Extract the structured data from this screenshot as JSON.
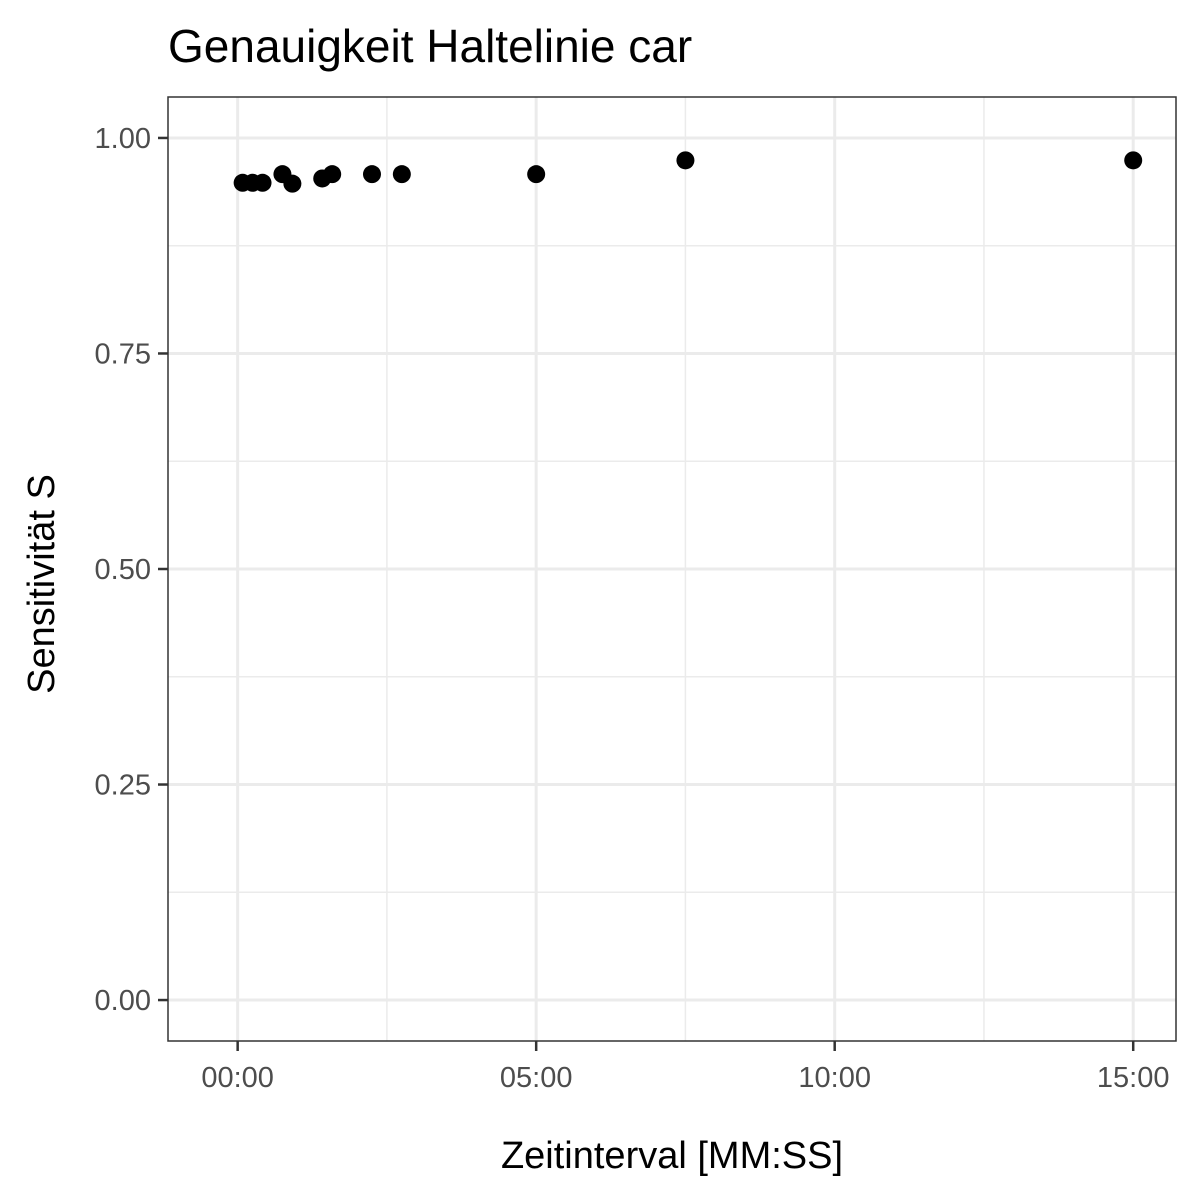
{
  "chart_data": {
    "type": "scatter",
    "title": "Genauigkeit Haltelinie car",
    "xlabel": "Zeitinterval [MM:SS]",
    "ylabel": "Sensitivität S",
    "x_unit": "seconds",
    "xlim": [
      -70,
      943
    ],
    "ylim": [
      -0.0475,
      1.0475
    ],
    "x_ticks": [
      {
        "value": 0,
        "label": "00:00"
      },
      {
        "value": 300,
        "label": "05:00"
      },
      {
        "value": 600,
        "label": "10:00"
      },
      {
        "value": 900,
        "label": "15:00"
      }
    ],
    "y_ticks": [
      {
        "value": 0,
        "label": "0.00"
      },
      {
        "value": 0.25,
        "label": "0.25"
      },
      {
        "value": 0.5,
        "label": "0.50"
      },
      {
        "value": 0.75,
        "label": "0.75"
      },
      {
        "value": 1,
        "label": "1.00"
      }
    ],
    "grid": true,
    "point_color": "#000000",
    "points": [
      {
        "x": 5,
        "y": 0.948
      },
      {
        "x": 15,
        "y": 0.948
      },
      {
        "x": 25,
        "y": 0.948
      },
      {
        "x": 45,
        "y": 0.958
      },
      {
        "x": 55,
        "y": 0.947
      },
      {
        "x": 85,
        "y": 0.953
      },
      {
        "x": 95,
        "y": 0.958
      },
      {
        "x": 135,
        "y": 0.958
      },
      {
        "x": 165,
        "y": 0.958
      },
      {
        "x": 300,
        "y": 0.958
      },
      {
        "x": 450,
        "y": 0.974
      },
      {
        "x": 900,
        "y": 0.974
      }
    ]
  }
}
